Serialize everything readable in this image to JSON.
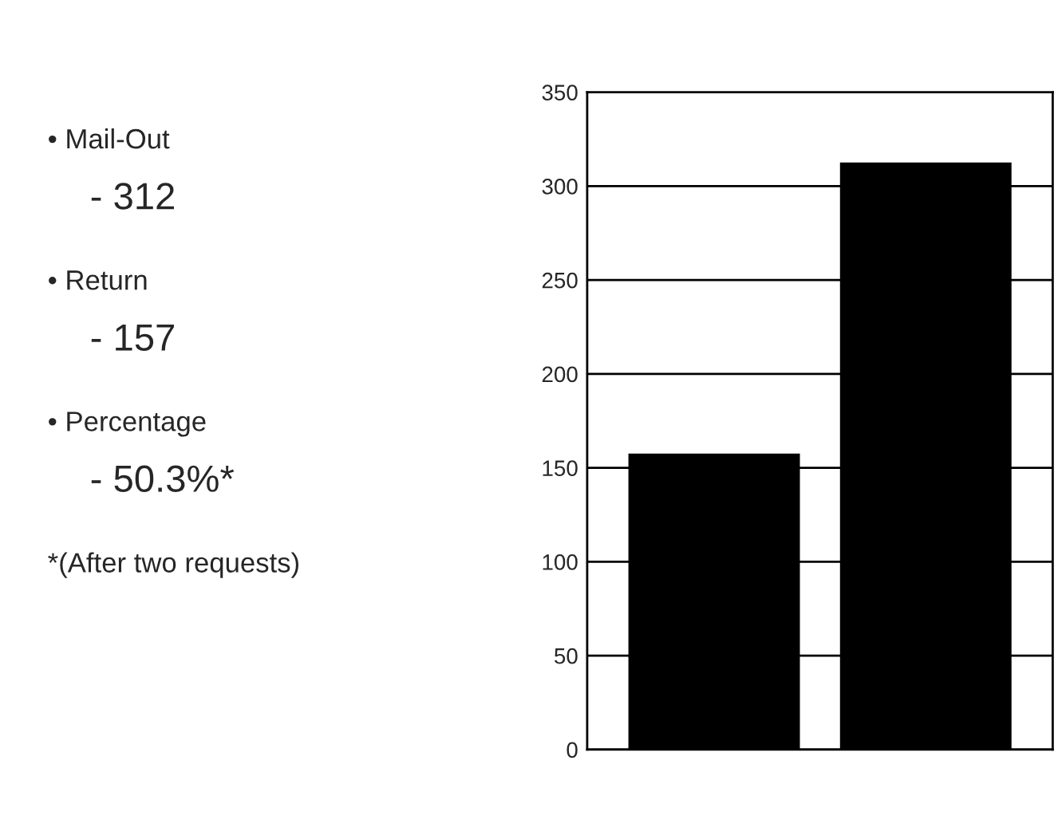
{
  "chart_data": {
    "type": "bar",
    "categories": [
      null,
      null
    ],
    "values": [
      157,
      312
    ],
    "color": "#000000",
    "ylim": [
      0,
      350
    ],
    "yticks": [
      0,
      50,
      100,
      150,
      200,
      250,
      300,
      350
    ],
    "grid": "y",
    "annotations": [
      "• Mail-Out",
      "- 312",
      "• Return",
      "- 157",
      "• Percentage",
      "- 50.3%*",
      "*(After two requests)"
    ]
  }
}
